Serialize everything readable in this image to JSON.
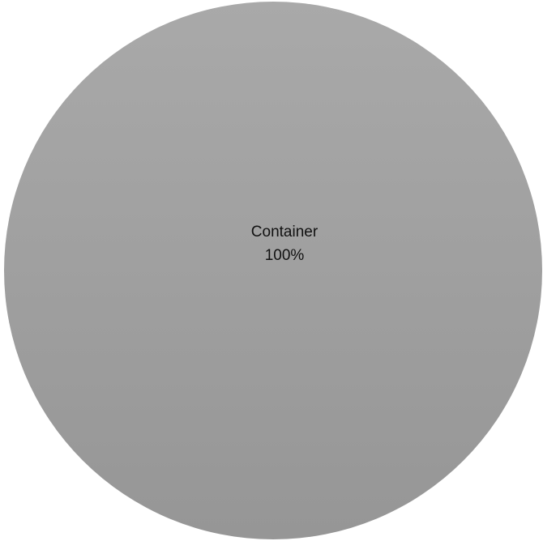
{
  "chart_data": {
    "type": "pie",
    "title": "",
    "legend": "none",
    "slices": [
      {
        "label": "Container",
        "value": 100,
        "percent_label": "100%",
        "color_top": "#a9a9a9",
        "color_bottom": "#969696"
      }
    ]
  }
}
